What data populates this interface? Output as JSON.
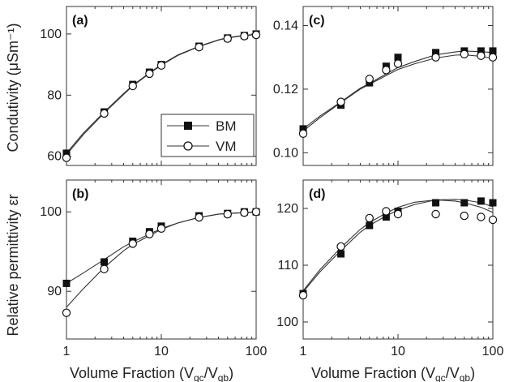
{
  "figure": {
    "ylabel_top": "Condutivity (μSm⁻¹)",
    "ylabel_bottom": "Relative permittivity εr",
    "xlabel_main": "Volume Fraction (V",
    "xlabel_sub1": "qc",
    "xlabel_mid": "/V",
    "xlabel_sub2": "qb",
    "xlabel_end": ")"
  },
  "colors": {
    "line": "#333333",
    "marker": "#111111",
    "open_fill": "#ffffff"
  },
  "legend": {
    "entries": [
      {
        "name": "BM",
        "marker": "square-filled"
      },
      {
        "name": "VM",
        "marker": "circle-open"
      }
    ]
  },
  "chart_data": [
    {
      "id": "a",
      "panel_label": "(a)",
      "type": "scatter",
      "xscale": "log",
      "xlim": [
        1,
        100
      ],
      "ylim": [
        57,
        109
      ],
      "yticks": [
        60,
        80,
        100
      ],
      "xticks": [
        1,
        10,
        100
      ],
      "series": [
        {
          "name": "BM",
          "x": [
            1,
            2.5,
            5,
            7.5,
            10,
            25,
            50,
            75,
            100
          ],
          "y": [
            61,
            74.5,
            83.5,
            87.5,
            90,
            96,
            98.7,
            99.5,
            100
          ]
        },
        {
          "name": "VM",
          "x": [
            1,
            2.5,
            5,
            7.5,
            10,
            25,
            50,
            75,
            100
          ],
          "y": [
            59.5,
            74,
            83,
            87,
            89.7,
            95.7,
            98.5,
            99.3,
            99.7
          ]
        }
      ],
      "fits": [
        {
          "series": "BM",
          "x": [
            1,
            1.5,
            2.5,
            4,
            5,
            7.5,
            10,
            15,
            25,
            40,
            50,
            75,
            100
          ],
          "y": [
            61,
            67.5,
            74.5,
            80.5,
            83.2,
            87.3,
            90,
            93.2,
            96,
            98.1,
            98.8,
            99.6,
            99.9
          ]
        },
        {
          "series": "VM",
          "x": [
            1,
            1.5,
            2.5,
            4,
            5,
            7.5,
            10,
            15,
            25,
            40,
            50,
            75,
            100
          ],
          "y": [
            60.5,
            67,
            74.2,
            80.2,
            83,
            87.1,
            89.8,
            93,
            95.9,
            98,
            98.7,
            99.5,
            99.8
          ]
        }
      ]
    },
    {
      "id": "c",
      "panel_label": "(c)",
      "type": "scatter",
      "xscale": "log",
      "xlim": [
        1,
        100
      ],
      "ylim": [
        0.096,
        0.146
      ],
      "yticks": [
        0.1,
        0.12,
        0.14
      ],
      "ytick_labels": [
        "0.10",
        "0.12",
        "0.14"
      ],
      "xticks": [
        1,
        10,
        100
      ],
      "series": [
        {
          "name": "BM",
          "x": [
            1,
            2.5,
            5,
            7.5,
            10,
            25,
            50,
            75,
            100
          ],
          "y": [
            0.1075,
            0.115,
            0.122,
            0.1272,
            0.13,
            0.1315,
            0.132,
            0.132,
            0.132
          ]
        },
        {
          "name": "VM",
          "x": [
            1,
            2.5,
            5,
            7.5,
            10,
            25,
            50,
            75,
            100
          ],
          "y": [
            0.106,
            0.116,
            0.1232,
            0.126,
            0.128,
            0.13,
            0.131,
            0.1305,
            0.13
          ]
        }
      ],
      "fits": [
        {
          "series": "BM",
          "x": [
            1,
            1.5,
            2.5,
            4,
            5,
            7.5,
            10,
            15,
            25,
            40,
            50,
            75,
            100
          ],
          "y": [
            0.1075,
            0.1115,
            0.116,
            0.1203,
            0.1218,
            0.1248,
            0.1268,
            0.1287,
            0.1308,
            0.1317,
            0.132,
            0.1318,
            0.1315
          ]
        },
        {
          "series": "VM",
          "x": [
            1,
            1.5,
            2.5,
            4,
            5,
            7.5,
            10,
            15,
            25,
            40,
            50,
            75,
            100
          ],
          "y": [
            0.1068,
            0.111,
            0.1158,
            0.12,
            0.1215,
            0.1243,
            0.1262,
            0.128,
            0.1298,
            0.1307,
            0.1308,
            0.1303,
            0.1297
          ]
        }
      ]
    },
    {
      "id": "b",
      "panel_label": "(b)",
      "type": "scatter",
      "xscale": "log",
      "xlim": [
        1,
        100
      ],
      "ylim": [
        84,
        104
      ],
      "yticks": [
        90,
        100
      ],
      "xticks": [
        1,
        10,
        100
      ],
      "xtick_labels": [
        "1",
        "10",
        "100"
      ],
      "series": [
        {
          "name": "BM",
          "x": [
            1,
            2.5,
            5,
            7.5,
            10,
            25,
            50,
            75,
            100
          ],
          "y": [
            91,
            93.7,
            96.3,
            97.5,
            98.2,
            99.5,
            99.8,
            100,
            100
          ]
        },
        {
          "name": "VM",
          "x": [
            1,
            2.5,
            5,
            7.5,
            10,
            25,
            50,
            75,
            100
          ],
          "y": [
            87.3,
            92.8,
            96,
            97.2,
            97.9,
            99.3,
            99.7,
            99.9,
            100
          ]
        }
      ],
      "fits": [
        {
          "series": "BM",
          "x": [
            1,
            1.5,
            2.5,
            4,
            5,
            7.5,
            10,
            15,
            25,
            40,
            50,
            75,
            100
          ],
          "y": [
            91,
            92.3,
            94,
            95.6,
            96.2,
            97.2,
            97.9,
            98.6,
            99.3,
            99.7,
            99.8,
            99.9,
            100
          ]
        },
        {
          "series": "VM",
          "x": [
            1,
            1.5,
            2.5,
            4,
            5,
            7.5,
            10,
            15,
            25,
            40,
            50,
            75,
            100
          ],
          "y": [
            88,
            90.3,
            93,
            95.1,
            95.9,
            97,
            97.8,
            98.6,
            99.3,
            99.7,
            99.8,
            99.9,
            99.95
          ]
        }
      ]
    },
    {
      "id": "d",
      "panel_label": "(d)",
      "type": "scatter",
      "xscale": "log",
      "xlim": [
        1,
        100
      ],
      "ylim": [
        97,
        125
      ],
      "yticks": [
        100,
        110,
        120
      ],
      "xticks": [
        1,
        10,
        100
      ],
      "xtick_labels": [
        "1",
        "10",
        "100"
      ],
      "series": [
        {
          "name": "BM",
          "x": [
            1,
            2.5,
            5,
            7.5,
            10,
            25,
            50,
            75,
            100
          ],
          "y": [
            105,
            112,
            117,
            118.5,
            119.5,
            121,
            121,
            121.3,
            121
          ]
        },
        {
          "name": "VM",
          "x": [
            1,
            2.5,
            5,
            7.5,
            10,
            25,
            50,
            75,
            100
          ],
          "y": [
            104.7,
            113.3,
            118.3,
            119.5,
            119,
            119,
            118.7,
            118.5,
            118
          ]
        }
      ],
      "fits": [
        {
          "series": "BM",
          "x": [
            1,
            1.5,
            2.5,
            4,
            5,
            7.5,
            10,
            15,
            25,
            40,
            50,
            75,
            100
          ],
          "y": [
            105.3,
            108.8,
            112.6,
            115.8,
            117,
            118.7,
            119.7,
            120.7,
            121.5,
            121.6,
            121.5,
            121,
            120.3
          ]
        },
        {
          "series": "VM",
          "x": [
            1,
            1.5,
            2.5,
            4,
            5,
            7.5,
            10,
            15,
            25,
            40,
            50,
            75,
            100
          ],
          "y": [
            105.5,
            109.2,
            113.1,
            116.3,
            117.5,
            119.2,
            120.2,
            121.1,
            121.5,
            121.3,
            121,
            120.2,
            119.3
          ]
        }
      ]
    }
  ]
}
